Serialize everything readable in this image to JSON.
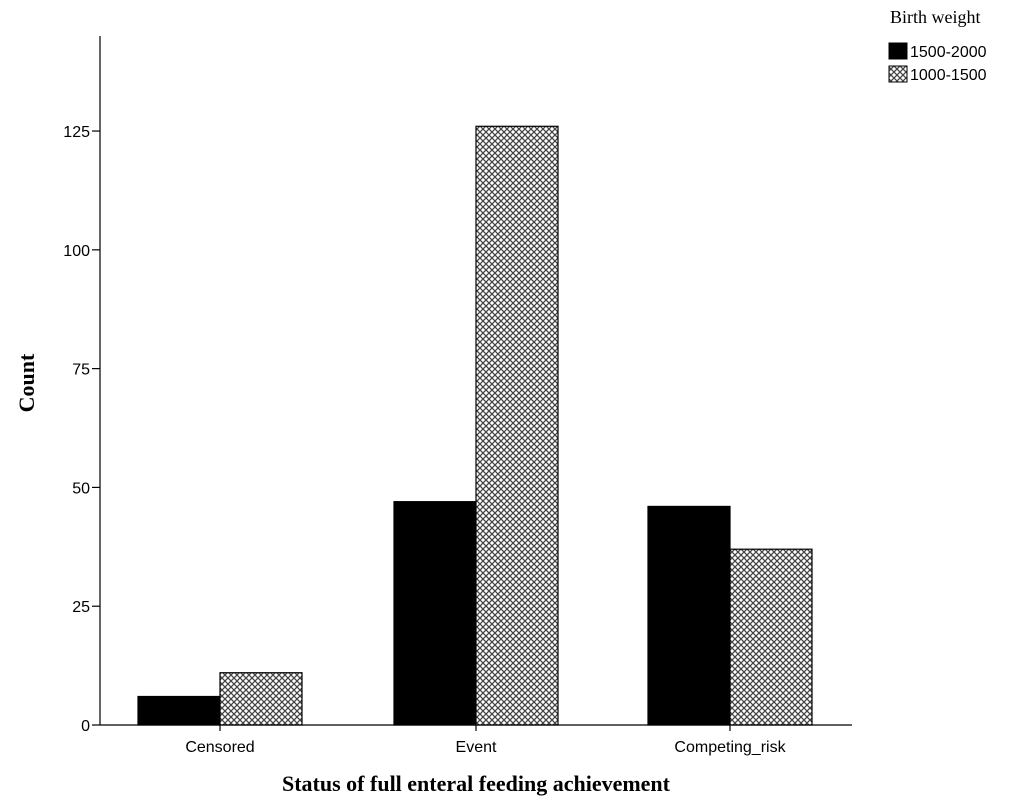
{
  "chart_data": {
    "type": "bar",
    "categories": [
      "Censored",
      "Event",
      "Competing_risk"
    ],
    "series": [
      {
        "name": "1500-2000",
        "values": [
          6,
          47,
          46
        ],
        "fill": "#000000"
      },
      {
        "name": "1000-1500",
        "values": [
          11,
          126,
          37
        ],
        "fill": "crosshatch-pattern"
      }
    ],
    "xlabel": "Status of full enteral feeding achievement",
    "ylabel": "Count",
    "ylim": [
      0,
      145
    ],
    "yticks": [
      0,
      25,
      50,
      75,
      100,
      125
    ],
    "legend_title": "Birth weight",
    "legend_position": "top-right",
    "grid": false
  }
}
